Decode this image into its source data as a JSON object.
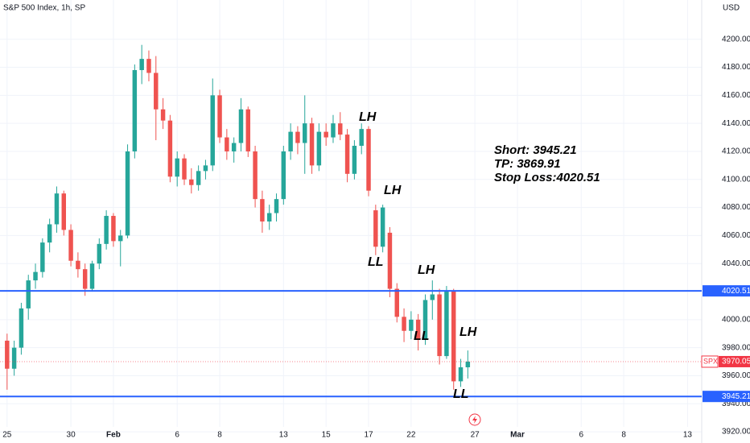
{
  "chart_data": {
    "type": "candlestick",
    "title": "S&P 500 Index, 1h, SP",
    "currency": "USD",
    "up_color": "#26a69a",
    "down_color": "#ef5350",
    "grid": true,
    "ylim": [
      3912,
      4228
    ],
    "yticks": [
      {
        "value": 3920,
        "label": "3920.00"
      },
      {
        "value": 3940,
        "label": "3940.00"
      },
      {
        "value": 3960,
        "label": "3960.00"
      },
      {
        "value": 3980,
        "label": "3980.00"
      },
      {
        "value": 4000,
        "label": "4000.00"
      },
      {
        "value": 4020,
        "label": "4020.00"
      },
      {
        "value": 4040,
        "label": "4040.00"
      },
      {
        "value": 4060,
        "label": "4060.00"
      },
      {
        "value": 4080,
        "label": "4080.00"
      },
      {
        "value": 4100,
        "label": "4100.00"
      },
      {
        "value": 4120,
        "label": "4120.00"
      },
      {
        "value": 4140,
        "label": "4140.00"
      },
      {
        "value": 4160,
        "label": "4160.00"
      },
      {
        "value": 4180,
        "label": "4180.00"
      },
      {
        "value": 4200,
        "label": "4200.00"
      }
    ],
    "xlim": [
      -1,
      98
    ],
    "xticks": [
      {
        "value": 0,
        "label": "25"
      },
      {
        "value": 9,
        "label": "30"
      },
      {
        "value": 15,
        "label": "Feb"
      },
      {
        "value": 24,
        "label": "6"
      },
      {
        "value": 30,
        "label": "8"
      },
      {
        "value": 39,
        "label": "13"
      },
      {
        "value": 45,
        "label": "15"
      },
      {
        "value": 51,
        "label": "17"
      },
      {
        "value": 57,
        "label": "22"
      },
      {
        "value": 66,
        "label": "27"
      },
      {
        "value": 72,
        "label": "Mar"
      },
      {
        "value": 81,
        "label": "6"
      },
      {
        "value": 87,
        "label": "8"
      },
      {
        "value": 96,
        "label": "13"
      }
    ],
    "ohlc": [
      [
        3985,
        3990,
        3950,
        3965
      ],
      [
        3965,
        3985,
        3960,
        3980
      ],
      [
        3980,
        4012,
        3975,
        4008
      ],
      [
        4008,
        4032,
        4000,
        4028
      ],
      [
        4028,
        4040,
        4022,
        4034
      ],
      [
        4034,
        4058,
        4030,
        4055
      ],
      [
        4055,
        4072,
        4048,
        4068
      ],
      [
        4068,
        4095,
        4062,
        4090
      ],
      [
        4090,
        4092,
        4060,
        4064
      ],
      [
        4064,
        4068,
        4038,
        4042
      ],
      [
        4042,
        4048,
        4030,
        4036
      ],
      [
        4036,
        4040,
        4017,
        4022
      ],
      [
        4022,
        4042,
        4020,
        4040
      ],
      [
        4040,
        4058,
        4036,
        4054
      ],
      [
        4054,
        4078,
        4050,
        4074
      ],
      [
        4074,
        4076,
        4052,
        4056
      ],
      [
        4056,
        4064,
        4038,
        4060
      ],
      [
        4060,
        4125,
        4058,
        4120
      ],
      [
        4120,
        4182,
        4115,
        4178
      ],
      [
        4178,
        4196,
        4168,
        4186
      ],
      [
        4186,
        4192,
        4170,
        4176
      ],
      [
        4176,
        4188,
        4128,
        4150
      ],
      [
        4150,
        4158,
        4136,
        4142
      ],
      [
        4142,
        4146,
        4098,
        4102
      ],
      [
        4102,
        4120,
        4095,
        4115
      ],
      [
        4115,
        4118,
        4096,
        4100
      ],
      [
        4100,
        4108,
        4090,
        4096
      ],
      [
        4096,
        4110,
        4092,
        4106
      ],
      [
        4106,
        4114,
        4100,
        4110
      ],
      [
        4110,
        4172,
        4106,
        4160
      ],
      [
        4160,
        4164,
        4126,
        4130
      ],
      [
        4130,
        4136,
        4114,
        4120
      ],
      [
        4120,
        4130,
        4112,
        4126
      ],
      [
        4126,
        4158,
        4120,
        4150
      ],
      [
        4150,
        4152,
        4116,
        4120
      ],
      [
        4120,
        4124,
        4080,
        4086
      ],
      [
        4086,
        4092,
        4062,
        4070
      ],
      [
        4070,
        4082,
        4064,
        4076
      ],
      [
        4076,
        4090,
        4070,
        4086
      ],
      [
        4086,
        4124,
        4082,
        4120
      ],
      [
        4120,
        4140,
        4114,
        4134
      ],
      [
        4134,
        4138,
        4118,
        4126
      ],
      [
        4126,
        4160,
        4104,
        4140
      ],
      [
        4140,
        4144,
        4104,
        4110
      ],
      [
        4110,
        4140,
        4106,
        4134
      ],
      [
        4134,
        4140,
        4124,
        4130
      ],
      [
        4130,
        4146,
        4126,
        4140
      ],
      [
        4140,
        4148,
        4128,
        4132
      ],
      [
        4132,
        4136,
        4098,
        4104
      ],
      [
        4104,
        4128,
        4100,
        4124
      ],
      [
        4124,
        4140,
        4118,
        4136
      ],
      [
        4136,
        4138,
        4088,
        4092
      ],
      [
        4078,
        4082,
        4046,
        4052
      ],
      [
        4052,
        4082,
        4048,
        4080
      ],
      [
        4062,
        4066,
        4016,
        4022
      ],
      [
        4022,
        4026,
        3998,
        4002
      ],
      [
        4002,
        4008,
        3984,
        3992
      ],
      [
        3992,
        4006,
        3986,
        4000
      ],
      [
        4000,
        4004,
        3978,
        3986
      ],
      [
        3986,
        4018,
        3982,
        4014
      ],
      [
        4014,
        4028,
        4000,
        4018
      ],
      [
        4018,
        4022,
        3968,
        3974
      ],
      [
        3974,
        4024,
        3972,
        4020
      ],
      [
        4020,
        4022,
        3950,
        3956
      ],
      [
        3956,
        3972,
        3952,
        3966
      ],
      [
        3966,
        3978,
        3958,
        3970.05
      ]
    ],
    "levels": [
      {
        "value": 4020.51,
        "color": "#2962ff"
      },
      {
        "value": 3945.21,
        "color": "#2962ff"
      }
    ],
    "last": {
      "name": "SPX",
      "value": 3970.05,
      "color": "#f23645"
    },
    "annotations": [
      "LH",
      "LH",
      "LL",
      "LH",
      "LL",
      "LH",
      "LL"
    ],
    "note": [
      "Short: 3945.21",
      "TP: 3869.91",
      "Stop Loss:4020.51"
    ]
  }
}
